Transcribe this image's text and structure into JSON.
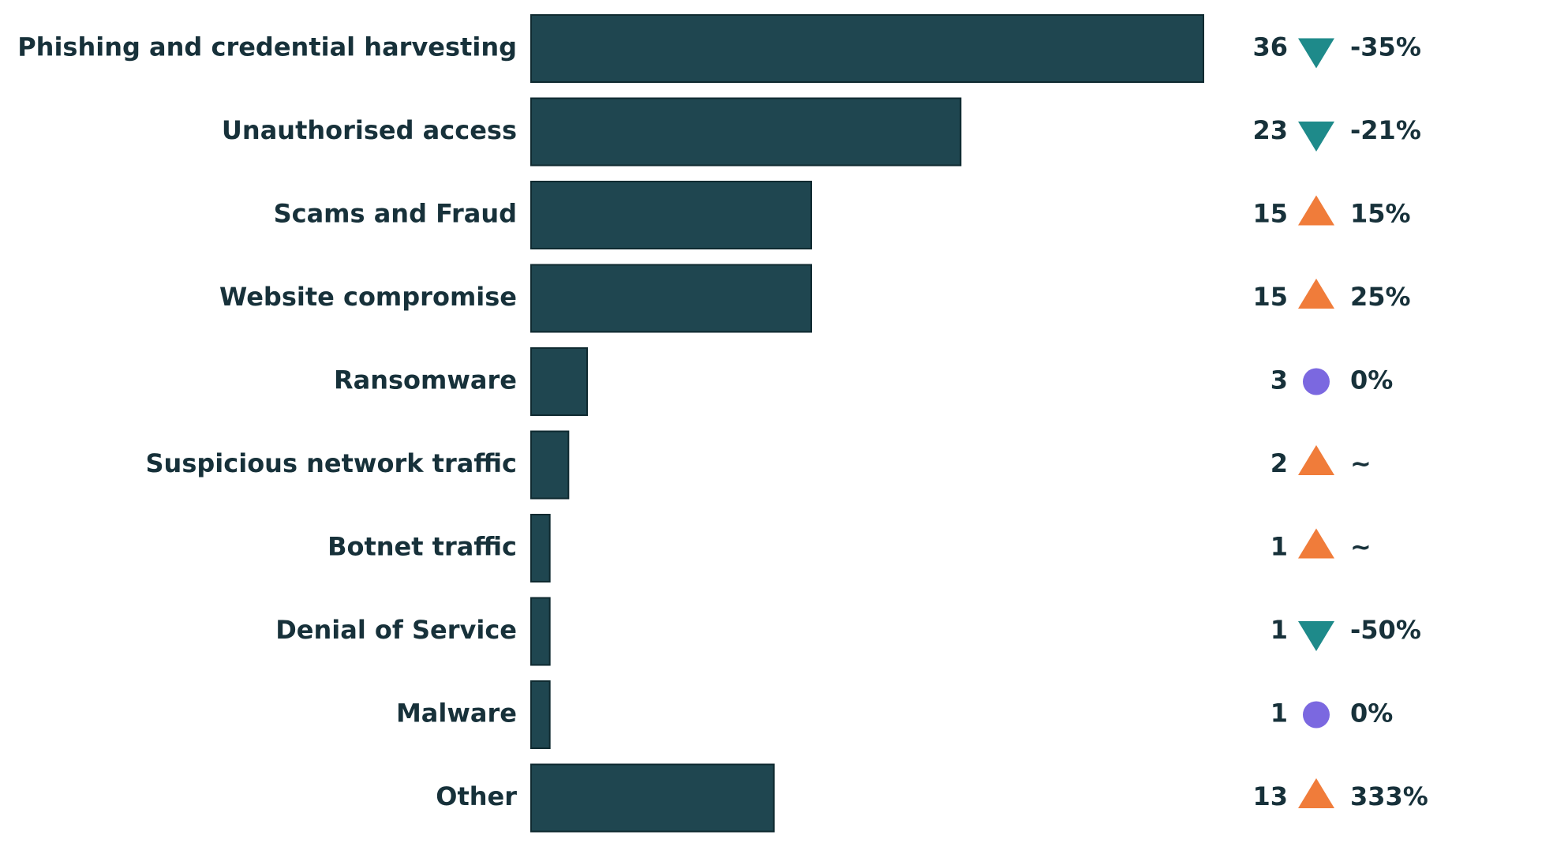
{
  "chart_data": {
    "type": "bar",
    "orientation": "horizontal",
    "categories": [
      "Phishing and credential harvesting",
      "Unauthorised access",
      "Scams and Fraud",
      "Website compromise",
      "Ransomware",
      "Suspicious network traffic",
      "Botnet traffic",
      "Denial of Service",
      "Malware",
      "Other"
    ],
    "values": [
      36,
      23,
      15,
      15,
      3,
      2,
      1,
      1,
      1,
      13
    ],
    "color": "#1f4650",
    "changes": [
      "-35%",
      "-21%",
      "15%",
      "25%",
      "0%",
      "~",
      "~",
      "-50%",
      "0%",
      "333%"
    ],
    "trends": [
      "down",
      "down",
      "up",
      "up",
      "flat",
      "up",
      "up",
      "down",
      "flat",
      "up"
    ],
    "trend_colors": {
      "down": "#1e8a8a",
      "up": "#f07c3a",
      "flat": "#7b68e0"
    }
  }
}
